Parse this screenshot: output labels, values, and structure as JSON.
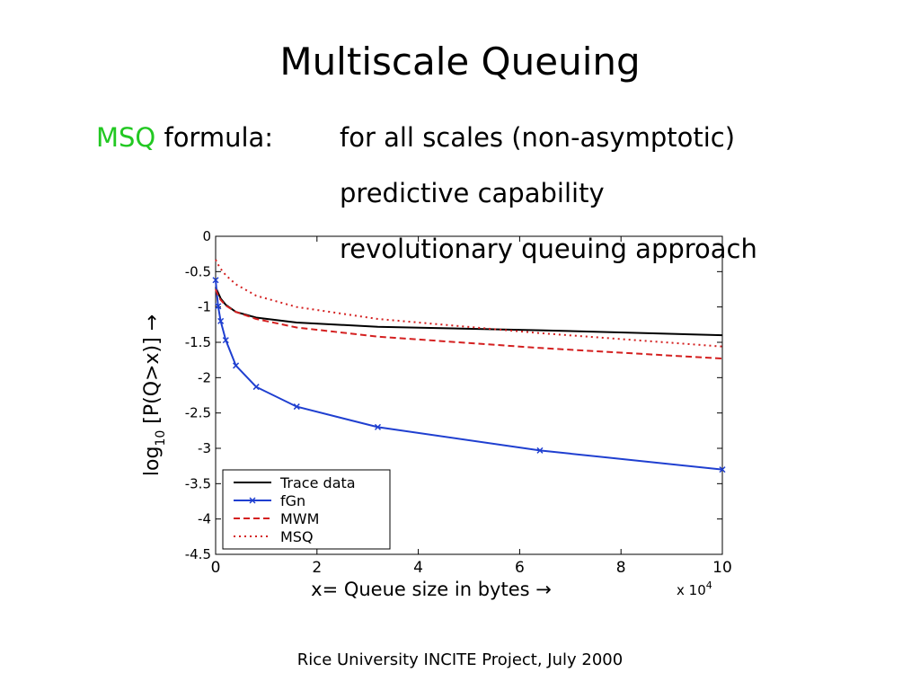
{
  "slide": {
    "title": "Multiscale Queuing",
    "formula": {
      "accent": "MSQ",
      "rest": " formula:"
    },
    "bullets": [
      "for all scales (non-asymptotic)",
      "predictive capability",
      "revolutionary queuing approach"
    ],
    "footer": "Rice University INCITE Project, July 2000"
  },
  "chart_data": {
    "type": "line",
    "title": "",
    "xlabel": "x= Queue size in bytes →",
    "ylabel_prefix": "log",
    "ylabel_sub": "10",
    "ylabel_rest": " [P(Q>x)] →",
    "x_multiplier": "x 10",
    "x_multiplier_exp": "4",
    "xlim": [
      0,
      10
    ],
    "ylim": [
      -4.5,
      0
    ],
    "xticks": [
      0,
      2,
      4,
      6,
      8,
      10
    ],
    "yticks": [
      0,
      -0.5,
      -1,
      -1.5,
      -2,
      -2.5,
      -3,
      -3.5,
      -4,
      -4.5
    ],
    "xtick_labels": [
      "0",
      "2",
      "4",
      "6",
      "8",
      "10"
    ],
    "ytick_labels": [
      "0",
      "-0.5",
      "-1",
      "-1.5",
      "-2",
      "-2.5",
      "-3",
      "-3.5",
      "-4",
      "-4.5"
    ],
    "grid": false,
    "legend_position": "bottom-left",
    "series": [
      {
        "name": "Trace data",
        "color": "#000000",
        "style": "solid",
        "marker": "none",
        "x": [
          0,
          0.05,
          0.1,
          0.2,
          0.4,
          0.8,
          1.6,
          3.2,
          6.4,
          10
        ],
        "y": [
          -0.72,
          -0.8,
          -0.88,
          -0.97,
          -1.07,
          -1.15,
          -1.22,
          -1.28,
          -1.33,
          -1.4
        ]
      },
      {
        "name": "fGn",
        "color": "#1f3fd0",
        "style": "solid",
        "marker": "x",
        "x": [
          0,
          0.05,
          0.1,
          0.2,
          0.4,
          0.8,
          1.6,
          3.2,
          6.4,
          10
        ],
        "y": [
          -0.62,
          -0.99,
          -1.2,
          -1.47,
          -1.83,
          -2.13,
          -2.41,
          -2.7,
          -3.03,
          -3.3
        ]
      },
      {
        "name": "MWM",
        "color": "#d42020",
        "style": "dashed",
        "marker": "none",
        "x": [
          0,
          0.05,
          0.1,
          0.2,
          0.4,
          0.8,
          1.6,
          3.2,
          6.4,
          10
        ],
        "y": [
          -0.75,
          -0.84,
          -0.9,
          -0.98,
          -1.07,
          -1.17,
          -1.29,
          -1.42,
          -1.58,
          -1.73
        ]
      },
      {
        "name": "MSQ",
        "color": "#d42020",
        "style": "dotted",
        "marker": "none",
        "x": [
          0,
          0.05,
          0.1,
          0.2,
          0.4,
          0.8,
          1.6,
          3.2,
          6.4,
          10
        ],
        "y": [
          -0.33,
          -0.4,
          -0.46,
          -0.55,
          -0.68,
          -0.84,
          -1.0,
          -1.17,
          -1.37,
          -1.56
        ]
      }
    ]
  }
}
